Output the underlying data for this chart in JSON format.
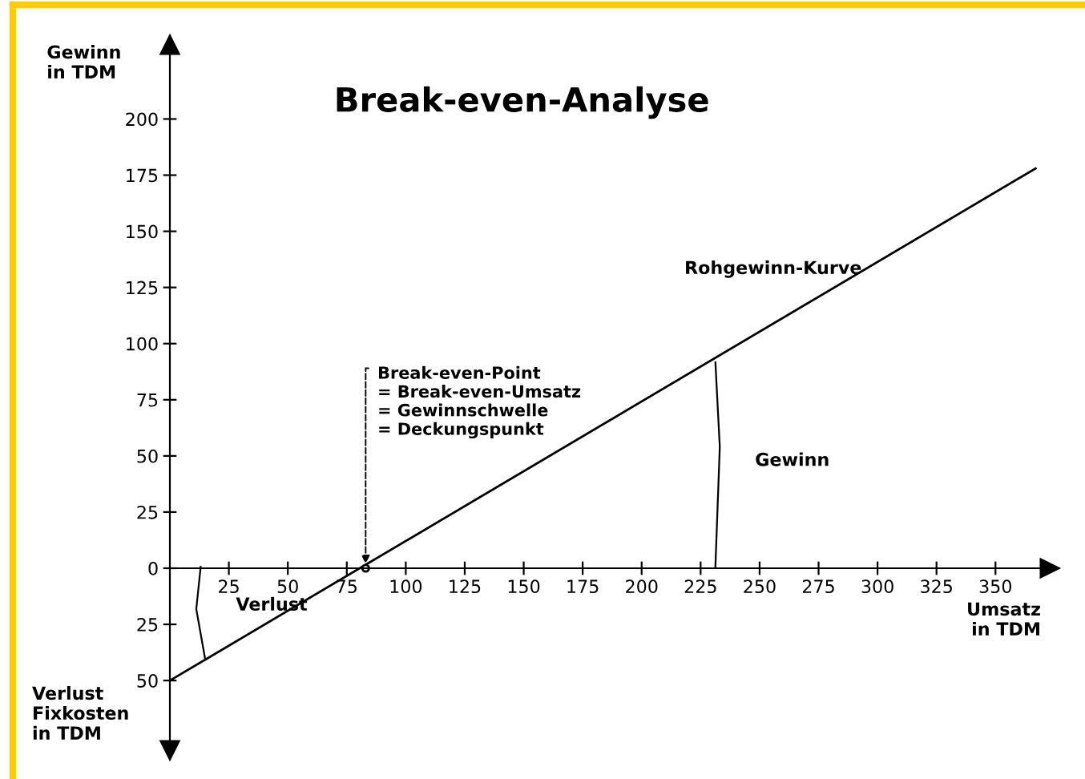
{
  "chart_data": {
    "type": "line",
    "title": "Break-even-Analyse",
    "xlabel": "Umsatz\nin TDM",
    "ylabel": "Gewinn\nin TDM",
    "series": [
      {
        "name": "Rohgewinn-Kurve",
        "color": "#000000",
        "x": [
          0,
          367
        ],
        "values": [
          -50,
          178
        ]
      }
    ],
    "xlim": [
      0,
      373
    ],
    "ylim": [
      -81,
      233
    ],
    "xticks": [
      25,
      50,
      75,
      100,
      125,
      150,
      175,
      200,
      225,
      250,
      275,
      300,
      325,
      350
    ],
    "yticks": [
      {
        "value": -50,
        "label": "50"
      },
      {
        "value": -25,
        "label": "25"
      },
      0,
      25,
      50,
      75,
      100,
      125,
      150,
      175,
      200
    ],
    "annotations": [
      {
        "text": "Break-even-Point\n= Break-even-Umsatz\n= Gewinnschwelle\n= Deckungspunkt",
        "x": 83,
        "y": 0
      },
      "Gewinn",
      "Verlust",
      "Verlust\nFixkosten\nin TDM"
    ],
    "grid": false,
    "legend": false,
    "marker": "none",
    "line_style": "solid"
  }
}
